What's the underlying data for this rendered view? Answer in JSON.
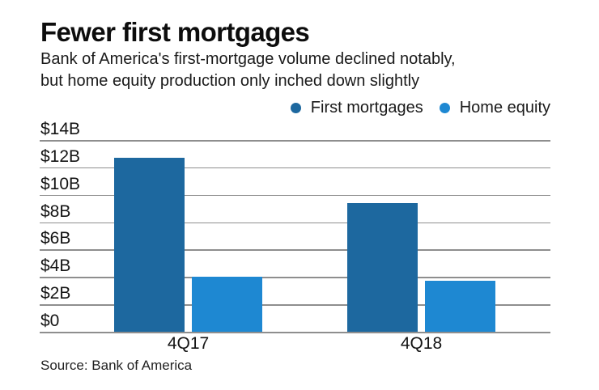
{
  "header": {
    "title": "Fewer first mortgages",
    "subtitle_line1": "Bank of America's first-mortgage volume declined notably,",
    "subtitle_line2": "but home equity production only inched down slightly"
  },
  "chart_data": {
    "type": "bar",
    "title": "Fewer first mortgages",
    "categories": [
      "4Q17",
      "4Q18"
    ],
    "series": [
      {
        "name": "First mortgages",
        "color": "#1d689f",
        "values": [
          12.7,
          9.4
        ]
      },
      {
        "name": "Home equity",
        "color": "#1e88d2",
        "values": [
          4.0,
          3.7
        ]
      }
    ],
    "ylim": [
      0,
      14
    ],
    "yticks": [
      {
        "value": 14,
        "label": "$14B"
      },
      {
        "value": 12,
        "label": "$12B"
      },
      {
        "value": 10,
        "label": "$10B"
      },
      {
        "value": 8,
        "label": "$8B"
      },
      {
        "value": 6,
        "label": "$6B"
      },
      {
        "value": 4,
        "label": "$4B"
      },
      {
        "value": 2,
        "label": "$2B"
      },
      {
        "value": 0,
        "label": "$0"
      }
    ],
    "grid": true,
    "legend_position": "top-right"
  },
  "footer": {
    "source": "Source: Bank of America"
  }
}
